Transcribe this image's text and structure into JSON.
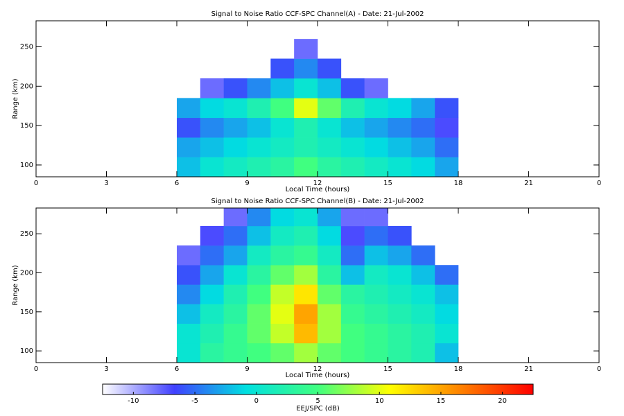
{
  "chart_data": [
    {
      "type": "heatmap",
      "title": "Signal to Noise Ratio CCF-SPC Channel(A) - Date: 21-Jul-2002",
      "x_label": "Local Time (hours)",
      "y_label": "Range (km)",
      "xlim": [
        0,
        24
      ],
      "ylim": [
        85,
        283
      ],
      "xticks": [
        0,
        3,
        6,
        9,
        12,
        15,
        18,
        21,
        {
          "value": 24,
          "label": "0"
        }
      ],
      "yticks": [
        100,
        150,
        200,
        250
      ],
      "x": [
        0,
        1,
        2,
        3,
        4,
        5,
        6,
        7,
        8,
        9,
        10,
        11,
        12,
        13,
        14,
        15,
        16,
        17,
        18,
        19,
        20,
        21,
        22,
        23,
        24
      ],
      "y": [
        85,
        110,
        135,
        160,
        185,
        210,
        235,
        260,
        283
      ],
      "z": [
        [
          null,
          null,
          null,
          null,
          null,
          null,
          -2,
          0,
          1,
          2,
          3,
          5,
          3,
          2,
          1,
          0,
          -1,
          -3,
          null,
          null,
          null,
          null,
          null,
          null
        ],
        [
          null,
          null,
          null,
          null,
          null,
          null,
          -3,
          -2,
          -1,
          0,
          1,
          2,
          1,
          0,
          -1,
          -2,
          -3,
          -5,
          null,
          null,
          null,
          null,
          null,
          null
        ],
        [
          null,
          null,
          null,
          null,
          null,
          null,
          -6,
          -4,
          -3,
          -2,
          0,
          2,
          0,
          -2,
          -3,
          -4,
          -5,
          -7,
          null,
          null,
          null,
          null,
          null,
          null
        ],
        [
          null,
          null,
          null,
          null,
          null,
          null,
          -3,
          -1,
          0,
          2,
          5,
          10,
          6,
          2,
          0,
          -1,
          -3,
          -6,
          null,
          null,
          null,
          null,
          null,
          null
        ],
        [
          null,
          null,
          null,
          null,
          null,
          null,
          null,
          -8,
          -6,
          -4,
          -2,
          0,
          -2,
          -6,
          -8,
          null,
          null,
          null,
          null,
          null,
          null,
          null,
          null,
          null
        ],
        [
          null,
          null,
          null,
          null,
          null,
          null,
          null,
          null,
          null,
          null,
          -6,
          -4,
          -6,
          null,
          null,
          null,
          null,
          null,
          null,
          null,
          null,
          null,
          null,
          null
        ],
        [
          null,
          null,
          null,
          null,
          null,
          null,
          null,
          null,
          null,
          null,
          null,
          -8,
          null,
          null,
          null,
          null,
          null,
          null,
          null,
          null,
          null,
          null,
          null,
          null
        ],
        [
          null,
          null,
          null,
          null,
          null,
          null,
          null,
          null,
          null,
          null,
          null,
          null,
          null,
          null,
          null,
          null,
          null,
          null,
          null,
          null,
          null,
          null,
          null,
          null
        ]
      ]
    },
    {
      "type": "heatmap",
      "title": "Signal to Noise Ratio CCF-SPC Channel(B) - Date: 21-Jul-2002",
      "x_label": "Local Time (hours)",
      "y_label": "Range (km)",
      "xlim": [
        0,
        24
      ],
      "ylim": [
        85,
        283
      ],
      "xticks": [
        0,
        3,
        6,
        9,
        12,
        15,
        18,
        21,
        {
          "value": 24,
          "label": "0"
        }
      ],
      "yticks": [
        100,
        150,
        200,
        250
      ],
      "x": [
        0,
        1,
        2,
        3,
        4,
        5,
        6,
        7,
        8,
        9,
        10,
        11,
        12,
        13,
        14,
        15,
        16,
        17,
        18,
        19,
        20,
        21,
        22,
        23,
        24
      ],
      "y": [
        85,
        110,
        135,
        160,
        185,
        210,
        235,
        260,
        283
      ],
      "z": [
        [
          null,
          null,
          null,
          null,
          null,
          null,
          0,
          3,
          4,
          5,
          6,
          8,
          6,
          5,
          4,
          3,
          2,
          -2,
          null,
          null,
          null,
          null,
          null,
          null
        ],
        [
          null,
          null,
          null,
          null,
          null,
          null,
          0,
          2,
          4,
          6,
          9,
          14,
          8,
          5,
          4,
          3,
          2,
          0,
          null,
          null,
          null,
          null,
          null,
          null
        ],
        [
          null,
          null,
          null,
          null,
          null,
          null,
          -2,
          1,
          3,
          6,
          10,
          15,
          8,
          4,
          3,
          2,
          1,
          -1,
          null,
          null,
          null,
          null,
          null,
          null
        ],
        [
          null,
          null,
          null,
          null,
          null,
          null,
          -4,
          -1,
          2,
          5,
          9,
          12,
          6,
          3,
          2,
          1,
          0,
          -2,
          null,
          null,
          null,
          null,
          null,
          null
        ],
        [
          null,
          null,
          null,
          null,
          null,
          null,
          -6,
          -3,
          0,
          3,
          6,
          8,
          3,
          -2,
          1,
          0,
          -2,
          -5,
          null,
          null,
          null,
          null,
          null,
          null
        ],
        [
          null,
          null,
          null,
          null,
          null,
          null,
          -8,
          -5,
          -3,
          1,
          3,
          4,
          1,
          -5,
          -2,
          -3,
          -5,
          null,
          null,
          null,
          null,
          null,
          null,
          null
        ],
        [
          null,
          null,
          null,
          null,
          null,
          null,
          null,
          -7,
          -5,
          -2,
          1,
          2,
          -1,
          -7,
          -5,
          -6,
          null,
          null,
          null,
          null,
          null,
          null,
          null,
          null
        ],
        [
          null,
          null,
          null,
          null,
          null,
          null,
          null,
          null,
          -8,
          -4,
          -1,
          0,
          -3,
          -8,
          -8,
          null,
          null,
          null,
          null,
          null,
          null,
          null,
          null,
          null
        ]
      ]
    }
  ],
  "colorbar": {
    "label": "EEJ/SPC (dB)",
    "clim": [
      -12.5,
      22.5
    ],
    "ticks": [
      -10,
      -5,
      0,
      5,
      10,
      15,
      20
    ],
    "colormap": [
      "#ffffff",
      "#4040ff",
      "#00e0e0",
      "#40ff80",
      "#ffff00",
      "#ff8000",
      "#ff0000"
    ]
  }
}
